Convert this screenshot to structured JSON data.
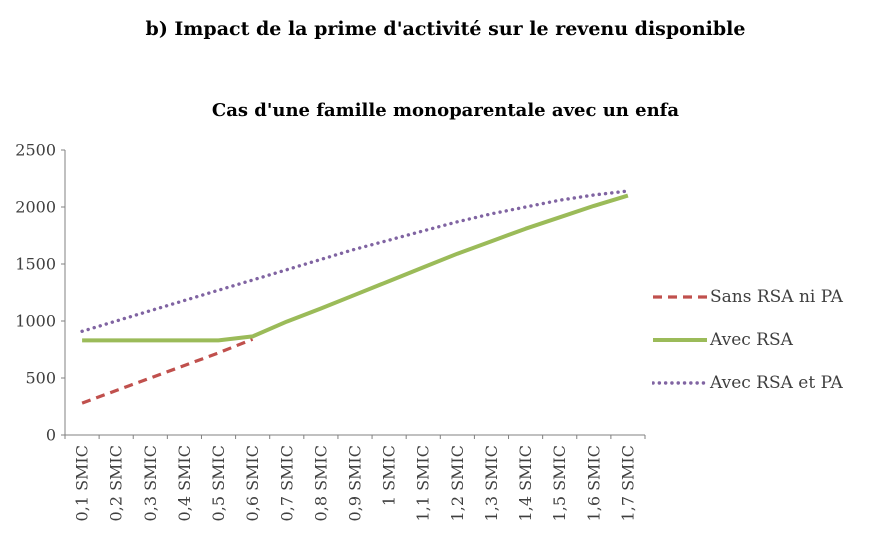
{
  "header": {
    "title": "b) Impact de la prime d'activité sur le revenu disponible"
  },
  "colors": {
    "axis": "#808080",
    "text": "#3f3f3f",
    "sans_rsa_ni_pa": "#C0504D",
    "avec_rsa": "#9BBB59",
    "avec_rsa_et_pa": "#8064A2"
  },
  "chart_data": {
    "type": "line",
    "title": "Cas d'une famille monoparentale avec un enfa",
    "xlabel": "",
    "ylabel": "",
    "ylim": [
      0,
      2500
    ],
    "yticks": [
      0,
      500,
      1000,
      1500,
      2000,
      2500
    ],
    "grid": false,
    "legend_position": "right",
    "categories": [
      "0,1 SMIC",
      "0,2 SMIC",
      "0,3 SMIC",
      "0,4 SMIC",
      "0,5 SMIC",
      "0,6 SMIC",
      "0,7 SMIC",
      "0,8 SMIC",
      "0,9 SMIC",
      "1 SMIC",
      "1,1 SMIC",
      "1,2 SMIC",
      "1,3 SMIC",
      "1,4 SMIC",
      "1,5 SMIC",
      "1,6 SMIC",
      "1,7 SMIC"
    ],
    "series": [
      {
        "name": "Sans RSA ni PA",
        "color": "#C0504D",
        "style": "dashed",
        "values": [
          280,
          390,
          500,
          610,
          720,
          840,
          null,
          null,
          null,
          null,
          null,
          null,
          null,
          null,
          null,
          null,
          null
        ]
      },
      {
        "name": "Avec RSA",
        "color": "#9BBB59",
        "style": "solid",
        "values": [
          830,
          830,
          830,
          830,
          830,
          865,
          995,
          1110,
          1230,
          1350,
          1470,
          1590,
          1700,
          1810,
          1910,
          2010,
          2100
        ]
      },
      {
        "name": "Avec RSA et PA",
        "color": "#8064A2",
        "style": "dotted",
        "values": [
          910,
          1000,
          1090,
          1180,
          1270,
          1360,
          1450,
          1540,
          1630,
          1710,
          1790,
          1870,
          1940,
          2000,
          2060,
          2105,
          2140
        ]
      }
    ]
  }
}
